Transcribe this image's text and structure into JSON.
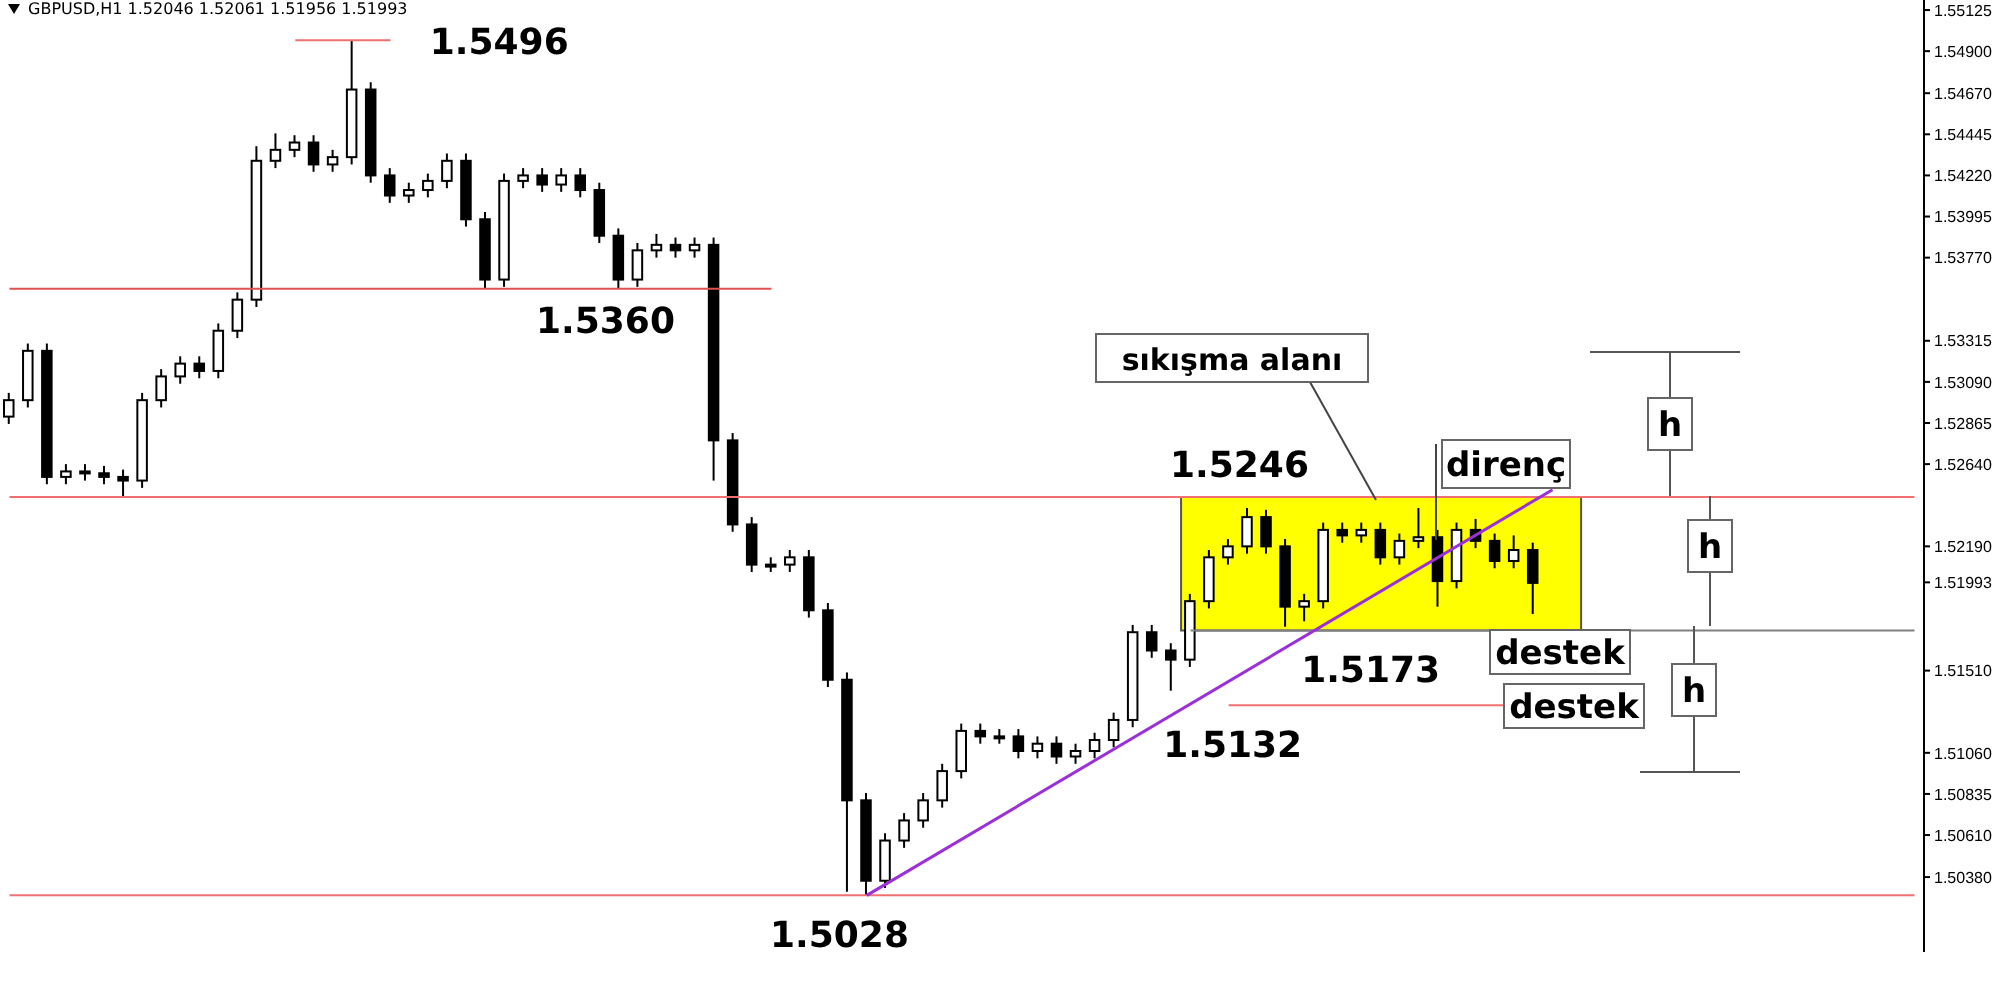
{
  "chart_data": {
    "type": "candlestick",
    "title": "GBPUSD,H1 1.52046 1.52061 1.51956 1.51993",
    "categories": [
      null,
      null,
      null,
      null,
      null,
      null,
      null,
      null,
      null,
      null,
      null,
      null,
      null,
      null,
      null,
      null,
      null,
      null,
      null,
      null,
      null,
      null,
      null,
      null,
      null,
      null,
      null,
      null,
      null,
      null,
      null,
      null,
      null,
      null,
      null,
      null,
      null,
      null,
      null,
      null,
      null,
      null,
      null,
      null,
      null,
      null,
      null,
      null,
      null,
      null,
      null,
      null,
      null,
      null,
      null,
      null,
      null,
      null,
      null,
      null,
      null,
      null,
      null,
      null,
      null,
      null,
      null,
      null,
      null,
      null,
      null,
      null,
      null,
      null,
      null,
      null,
      null,
      null,
      null,
      null,
      null,
      null,
      null,
      null,
      null,
      null,
      null,
      null,
      null,
      null,
      null,
      null,
      null,
      null,
      null,
      null,
      null,
      null,
      null,
      null,
      null
    ],
    "series": [
      {
        "type": "candlestick",
        "color": "#000000",
        "ohlc": [
          [
            1.529,
            1.5303,
            1.5286,
            1.5299
          ],
          [
            1.5299,
            1.533,
            1.5295,
            1.5326
          ],
          [
            1.5326,
            1.533,
            1.5253,
            1.5257
          ],
          [
            1.5257,
            1.5264,
            1.5253,
            1.526
          ],
          [
            1.526,
            1.5264,
            1.5255,
            1.5259
          ],
          [
            1.5259,
            1.5263,
            1.5253,
            1.5257
          ],
          [
            1.5257,
            1.5261,
            1.5246,
            1.5255
          ],
          [
            1.5255,
            1.5303,
            1.5251,
            1.5299
          ],
          [
            1.5299,
            1.5316,
            1.5295,
            1.5312
          ],
          [
            1.5312,
            1.5323,
            1.5308,
            1.5319
          ],
          [
            1.5319,
            1.5323,
            1.5311,
            1.5315
          ],
          [
            1.5315,
            1.5341,
            1.5311,
            1.5337
          ],
          [
            1.5337,
            1.5358,
            1.5333,
            1.5354
          ],
          [
            1.5354,
            1.5438,
            1.535,
            1.543
          ],
          [
            1.543,
            1.5445,
            1.5426,
            1.5436
          ],
          [
            1.5436,
            1.5444,
            1.5432,
            1.544
          ],
          [
            1.544,
            1.5444,
            1.5424,
            1.5428
          ],
          [
            1.5428,
            1.5436,
            1.5424,
            1.5432
          ],
          [
            1.5432,
            1.5496,
            1.5428,
            1.5469
          ],
          [
            1.5469,
            1.5473,
            1.5418,
            1.5422
          ],
          [
            1.5422,
            1.5426,
            1.5407,
            1.5411
          ],
          [
            1.5411,
            1.5418,
            1.5407,
            1.5414
          ],
          [
            1.5414,
            1.5423,
            1.541,
            1.5419
          ],
          [
            1.5419,
            1.5434,
            1.5415,
            1.543
          ],
          [
            1.543,
            1.5434,
            1.5394,
            1.5398
          ],
          [
            1.5398,
            1.5402,
            1.536,
            1.5365
          ],
          [
            1.5365,
            1.5423,
            1.5361,
            1.5419
          ],
          [
            1.5419,
            1.5426,
            1.5415,
            1.5422
          ],
          [
            1.5422,
            1.5426,
            1.5413,
            1.5417
          ],
          [
            1.5417,
            1.5426,
            1.5413,
            1.5422
          ],
          [
            1.5422,
            1.5426,
            1.541,
            1.5414
          ],
          [
            1.5414,
            1.5418,
            1.5385,
            1.5389
          ],
          [
            1.5389,
            1.5393,
            1.536,
            1.5365
          ],
          [
            1.5365,
            1.5385,
            1.5361,
            1.5381
          ],
          [
            1.5381,
            1.539,
            1.5377,
            1.5384
          ],
          [
            1.5384,
            1.5388,
            1.5377,
            1.5381
          ],
          [
            1.5381,
            1.5388,
            1.5377,
            1.5384
          ],
          [
            1.5384,
            1.5388,
            1.5255,
            1.5277
          ],
          [
            1.5277,
            1.5281,
            1.5227,
            1.5231
          ],
          [
            1.5231,
            1.5235,
            1.5205,
            1.5209
          ],
          [
            1.5209,
            1.5213,
            1.5205,
            1.5209
          ],
          [
            1.5209,
            1.5217,
            1.5205,
            1.5213
          ],
          [
            1.5213,
            1.5217,
            1.518,
            1.5184
          ],
          [
            1.5184,
            1.5188,
            1.5142,
            1.5146
          ],
          [
            1.5146,
            1.515,
            1.503,
            1.508
          ],
          [
            1.508,
            1.5084,
            1.5028,
            1.5036
          ],
          [
            1.5036,
            1.5062,
            1.5032,
            1.5058
          ],
          [
            1.5058,
            1.5073,
            1.5054,
            1.5069
          ],
          [
            1.5069,
            1.5084,
            1.5065,
            1.508
          ],
          [
            1.508,
            1.51,
            1.5076,
            1.5096
          ],
          [
            1.5096,
            1.5122,
            1.5092,
            1.5118
          ],
          [
            1.5118,
            1.5122,
            1.5111,
            1.5115
          ],
          [
            1.5115,
            1.5119,
            1.5111,
            1.5115
          ],
          [
            1.5115,
            1.5119,
            1.5103,
            1.5107
          ],
          [
            1.5107,
            1.5115,
            1.5103,
            1.5111
          ],
          [
            1.5111,
            1.5115,
            1.51,
            1.5104
          ],
          [
            1.5104,
            1.5111,
            1.51,
            1.5107
          ],
          [
            1.5107,
            1.5117,
            1.5103,
            1.5113
          ],
          [
            1.5113,
            1.5128,
            1.5109,
            1.5124
          ],
          [
            1.5124,
            1.5176,
            1.512,
            1.5172
          ],
          [
            1.5172,
            1.5176,
            1.5158,
            1.5162
          ],
          [
            1.5162,
            1.5166,
            1.514,
            1.5157
          ],
          [
            1.5157,
            1.5193,
            1.5153,
            1.5189
          ],
          [
            1.5189,
            1.5217,
            1.5185,
            1.5213
          ],
          [
            1.5213,
            1.5223,
            1.5209,
            1.5219
          ],
          [
            1.5219,
            1.524,
            1.5215,
            1.5235
          ],
          [
            1.5235,
            1.5239,
            1.5215,
            1.5219
          ],
          [
            1.5219,
            1.5223,
            1.5175,
            1.5186
          ],
          [
            1.5186,
            1.5193,
            1.5178,
            1.5189
          ],
          [
            1.5189,
            1.5232,
            1.5185,
            1.5228
          ],
          [
            1.5228,
            1.5232,
            1.5221,
            1.5225
          ],
          [
            1.5225,
            1.5232,
            1.5221,
            1.5228
          ],
          [
            1.5228,
            1.5232,
            1.5209,
            1.5213
          ],
          [
            1.5213,
            1.5226,
            1.5209,
            1.5222
          ],
          [
            1.5222,
            1.524,
            1.5218,
            1.5224
          ],
          [
            1.5224,
            1.5228,
            1.5186,
            1.52
          ],
          [
            1.52,
            1.5232,
            1.5196,
            1.5228
          ],
          [
            1.5228,
            1.5234,
            1.5218,
            1.5222
          ],
          [
            1.5222,
            1.5226,
            1.5207,
            1.5211
          ],
          [
            1.5211,
            1.5225,
            1.5207,
            1.5217
          ],
          [
            1.5217,
            1.5221,
            1.5182,
            1.5199
          ],
          null,
          null,
          null,
          null,
          null,
          null,
          null,
          null,
          null,
          null,
          null,
          null,
          null,
          null,
          null,
          null,
          null,
          null,
          null,
          null
        ]
      },
      {
        "type": "line",
        "color": "#9b30d9",
        "values": [
          null,
          null,
          null,
          null,
          null,
          null,
          null,
          null,
          null,
          null,
          null,
          null,
          null,
          null,
          null,
          null,
          null,
          null,
          null,
          null,
          null,
          null,
          null,
          null,
          null,
          null,
          null,
          null,
          null,
          null,
          null,
          null,
          null,
          null,
          null,
          null,
          null,
          null,
          null,
          null,
          null,
          null,
          null,
          null,
          null,
          1.5028,
          null,
          null,
          null,
          null,
          null,
          null,
          null,
          null,
          null,
          null,
          null,
          null,
          null,
          null,
          null,
          null,
          null,
          null,
          null,
          null,
          null,
          null,
          null,
          null,
          null,
          null,
          null,
          null,
          null,
          null,
          null,
          null,
          null,
          null,
          null,
          1.525,
          null,
          null,
          null,
          null,
          null,
          null,
          null,
          null,
          null,
          null,
          null,
          null,
          null,
          null,
          null,
          null,
          null,
          null,
          null
        ]
      }
    ],
    "ylim": [
      1.4997,
      1.5518
    ],
    "yticks": [
      1.55125,
      {
        "value": 1.549,
        "label": "1.54900"
      },
      {
        "value": 1.5467,
        "label": "1.54670"
      },
      1.54445,
      {
        "value": 1.5422,
        "label": "1.54220"
      },
      1.53995,
      {
        "value": 1.5377,
        "label": "1.53770"
      },
      1.53315,
      {
        "value": 1.5309,
        "label": "1.53090"
      },
      1.52865,
      {
        "value": 1.5264,
        "label": "1.52640"
      },
      {
        "value": 1.5219,
        "label": "1.52190"
      },
      1.51993,
      {
        "value": 1.5151,
        "label": "1.51510"
      },
      {
        "value": 1.5106,
        "label": "1.51060"
      },
      1.50835,
      {
        "value": 1.5061,
        "label": "1.50610"
      },
      {
        "value": 1.5038,
        "label": "1.50380"
      }
    ],
    "tick_labels": "y",
    "ref_lines": [
      {
        "axis": "y",
        "value": 1.5496,
        "label": "1.5496",
        "color": "#f07070"
      },
      {
        "axis": "y",
        "value": 1.536,
        "label": "1.5360",
        "color": "#e05050"
      },
      {
        "axis": "y",
        "value": 1.5246,
        "label": "1.5246",
        "color": "#f07070"
      },
      {
        "axis": "y",
        "value": 1.5173,
        "label": "1.5173",
        "color": "#808080"
      },
      {
        "axis": "y",
        "value": 1.5132,
        "label": "1.5132",
        "color": "#f07070"
      },
      {
        "axis": "y",
        "value": 1.5028,
        "label": "1.5028",
        "color": "#f07070"
      }
    ],
    "bands": [
      {
        "axis": "y",
        "from": 1.5173,
        "to": 1.5246,
        "label": "sıkışma alanı",
        "color": "#ffff00"
      }
    ],
    "annotations": [
      "direnç",
      "destek",
      "destek",
      "h",
      "h",
      "h"
    ]
  }
}
